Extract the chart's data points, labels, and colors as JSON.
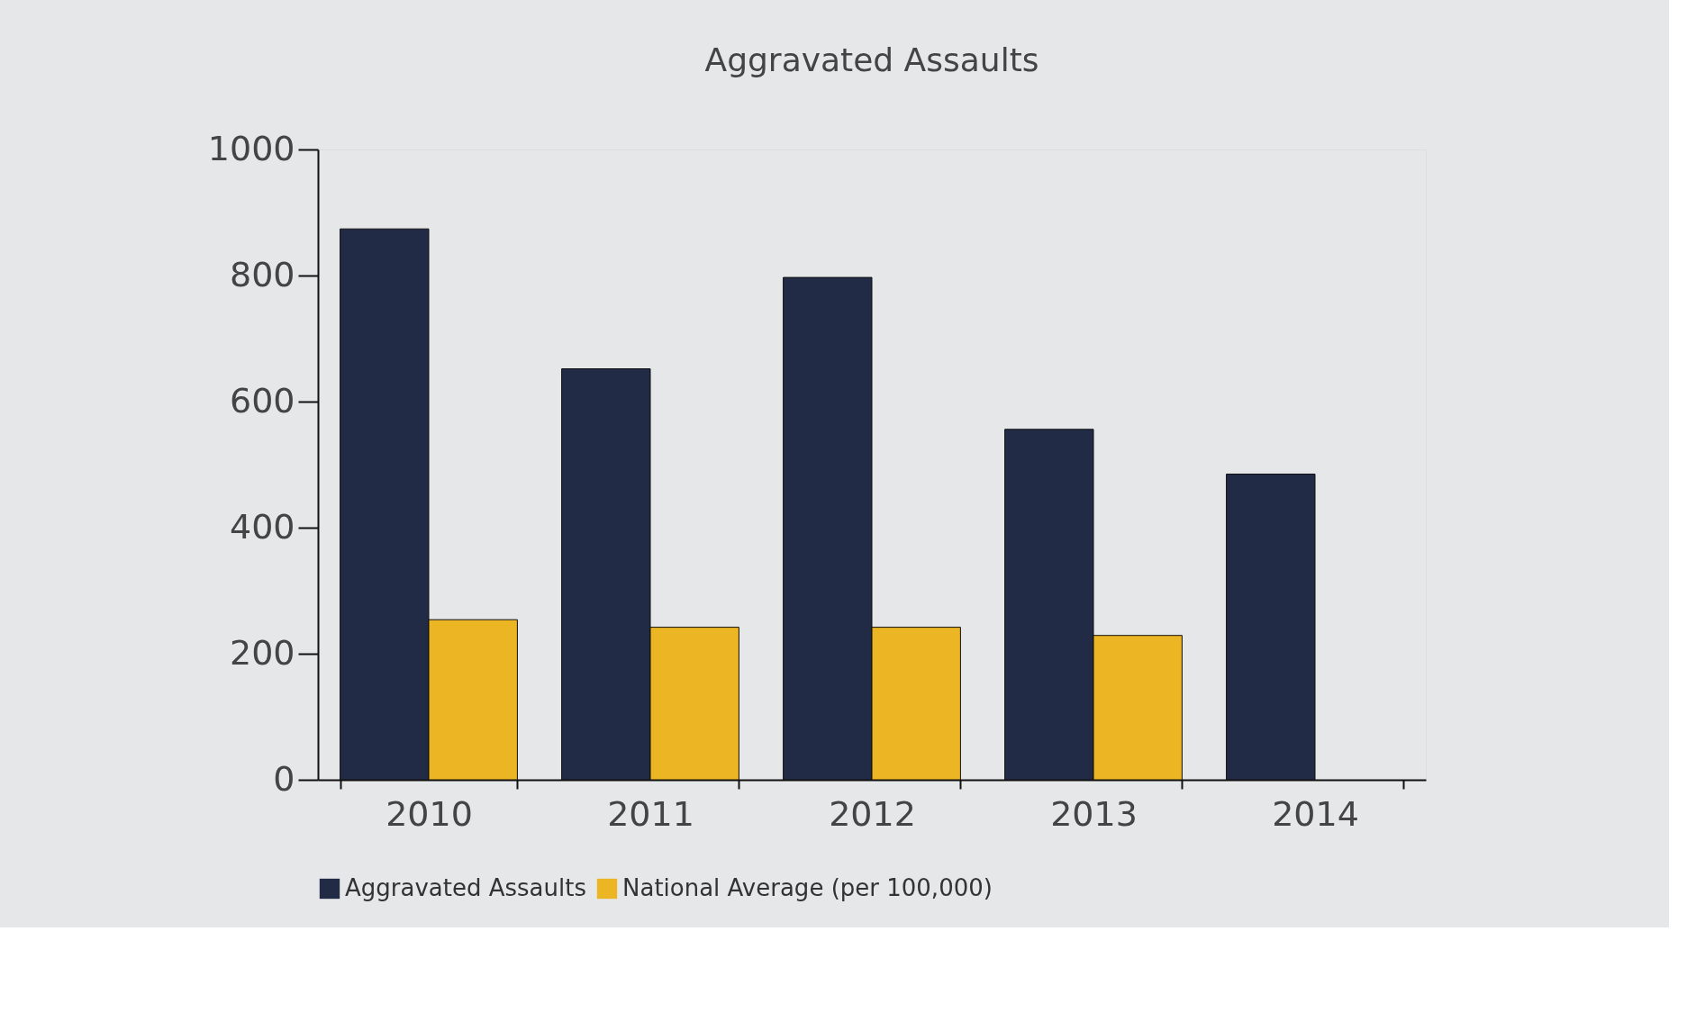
{
  "chart_data": {
    "type": "bar",
    "title": "Aggravated Assaults",
    "categories": [
      "2010",
      "2011",
      "2012",
      "2013",
      "2014"
    ],
    "series": [
      {
        "name": "Aggravated Assaults",
        "color": "#222b45",
        "values": [
          874,
          652,
          797,
          556,
          485
        ]
      },
      {
        "name": "National Average (per 100,000)",
        "color": "#ebb523",
        "values": [
          254,
          242,
          242,
          229,
          null
        ]
      }
    ],
    "ylim": [
      0,
      1000
    ],
    "yticks": [
      0,
      200,
      400,
      600,
      800,
      1000
    ],
    "grid": false,
    "legend": "bottom"
  }
}
